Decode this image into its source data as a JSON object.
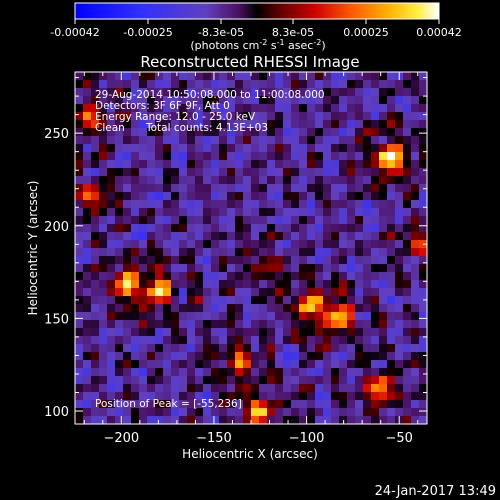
{
  "colorbar": {
    "tick_labels": [
      "-0.00042",
      "-0.00025",
      "-8.3e-05",
      "8.3e-05",
      "0.00025",
      "0.00042"
    ],
    "unit_text": "(photons cm",
    "unit_sup1": "-2",
    "unit_mid": " s",
    "unit_sup2": "-1",
    "unit_mid2": " asec",
    "unit_sup3": "-2",
    "unit_end": ")"
  },
  "chart_data": {
    "type": "heatmap",
    "title": "Reconstructed RHESSI Image",
    "xlabel": "Heliocentric X (arcsec)",
    "ylabel": "Heliocentric Y (arcsec)",
    "xlim": [
      -225,
      -35
    ],
    "ylim": [
      93,
      283
    ],
    "x_ticks": [
      -200,
      -150,
      -100,
      -50
    ],
    "y_ticks": [
      100,
      150,
      200,
      250
    ],
    "color_range": [
      -0.00042,
      0.00042
    ],
    "colormap": "blue-purple-red-orange-yellow-white",
    "bright_sources": [
      {
        "x": -55,
        "y": 236,
        "value": 0.00042
      },
      {
        "x": -197,
        "y": 168,
        "value": 0.00033
      },
      {
        "x": -180,
        "y": 165,
        "value": 0.0003
      },
      {
        "x": -98,
        "y": 157,
        "value": 0.0003
      },
      {
        "x": -83,
        "y": 150,
        "value": 0.00028
      },
      {
        "x": -137,
        "y": 128,
        "value": 0.00026
      },
      {
        "x": -125,
        "y": 100,
        "value": 0.0003
      },
      {
        "x": -60,
        "y": 112,
        "value": 0.00028
      },
      {
        "x": -218,
        "y": 258,
        "value": 0.00026
      },
      {
        "x": -215,
        "y": 215,
        "value": 0.00022
      },
      {
        "x": -122,
        "y": 178,
        "value": 0.00015
      },
      {
        "x": -40,
        "y": 190,
        "value": 0.00018
      }
    ],
    "annotations": {
      "time": "29-Aug-2014 10:50:08.000 to 11:00:08.000",
      "detectors": "Detectors: 3F 6F 9F, Att 0",
      "energy": "Energy Range: 12.0 - 25.0 keV",
      "method": "Clean",
      "counts": "Total counts: 4.13E+03",
      "peak": "Position of Peak = [-55,236]"
    }
  },
  "footer": {
    "timestamp": "24-Jan-2017 13:49"
  }
}
